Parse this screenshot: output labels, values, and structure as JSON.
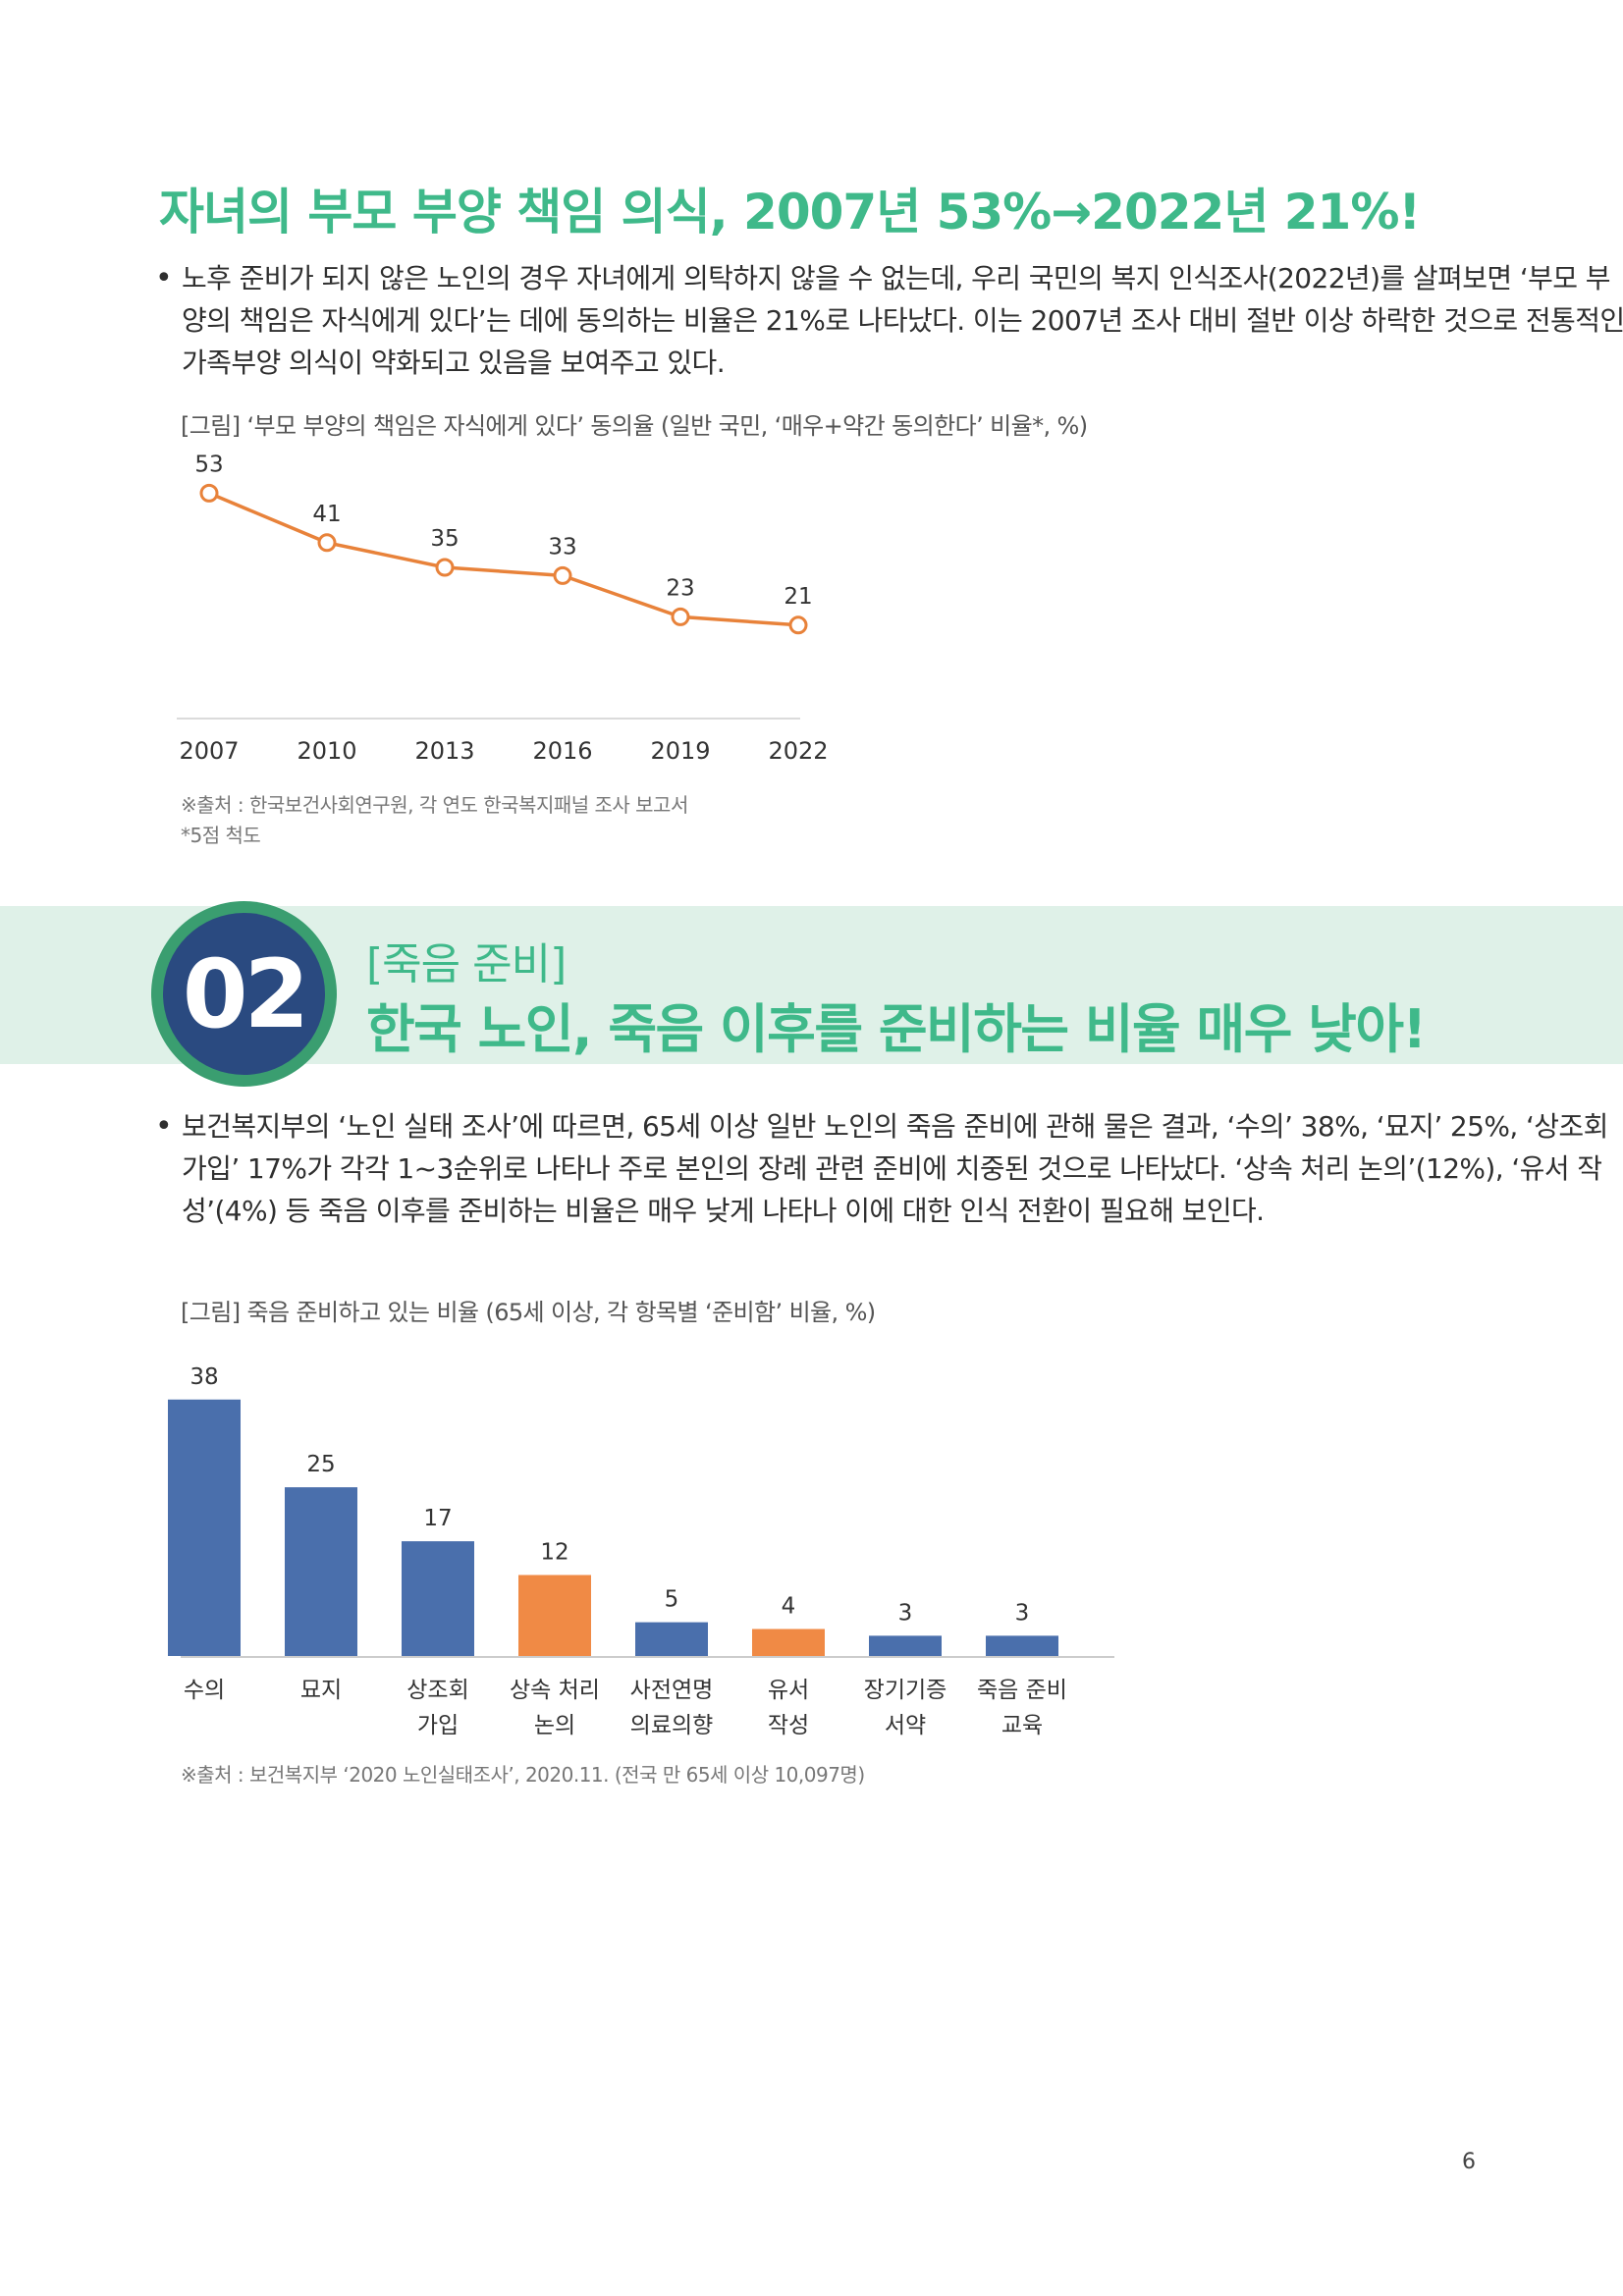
{
  "section1": {
    "title": "자녀의 부모 부양 책임 의식, 2007년 53%→2022년 21%!",
    "bullet": "•",
    "paragraph": "노후 준비가 되지 않은 노인의 경우 자녀에게 의탁하지 않을 수 없는데, 우리 국민의 복지 인식조사(2022년)를 살펴보면 ‘부모 부양의 책임은 자식에게 있다’는 데에 동의하는 비율은 21%로 나타났다. 이는 2007년 조사 대비 절반 이상 하락한 것으로 전통적인 가족부양 의식이 약화되고 있음을 보여주고 있다.",
    "figure_caption": "[그림] ‘부모 부양의 책임은 자식에게 있다’ 동의율 (일반 국민, ‘매우+약간 동의한다’ 비율*, %)",
    "source": "※출처 : 한국보건사회연구원, 각 연도 한국복지패널 조사 보고서",
    "note": "*5점 척도"
  },
  "section2": {
    "number": "02",
    "subtitle": "[죽음 준비]",
    "title": "한국 노인, 죽음 이후를 준비하는 비율 매우 낮아!",
    "bullet": "•",
    "paragraph": "보건복지부의 ‘노인 실태 조사’에 따르면, 65세 이상 일반 노인의 죽음 준비에 관해 물은 결과, ‘수의’ 38%, ‘묘지’ 25%, ‘상조회 가입’ 17%가 각각 1~3순위로 나타나 주로 본인의 장례 관련 준비에 치중된 것으로 나타났다. ‘상속 처리 논의’(12%), ‘유서 작성’(4%) 등 죽음 이후를 준비하는 비율은 매우 낮게 나타나 이에 대한 인식 전환이 필요해 보인다.",
    "figure_caption": "[그림] 죽음 준비하고 있는 비율 (65세 이상, 각 항목별 ‘준비함’ 비율, %)",
    "source": "※출처 : 보건복지부 ‘2020 노인실태조사’, 2020.11. (전국 만 65세 이상 10,097명)"
  },
  "page_number": "6",
  "colors": {
    "accent_green": "#3fb98a",
    "band": "#dff1e8",
    "circle_navy": "#2a4a80",
    "line_orange": "#e8823a",
    "bar_blue": "#4a6fac",
    "bar_orange": "#f08a45"
  },
  "chart_data": [
    {
      "type": "line",
      "x": [
        "2007",
        "2010",
        "2013",
        "2016",
        "2019",
        "2022"
      ],
      "series": [
        {
          "values": [
            53,
            41,
            35,
            33,
            23,
            21
          ]
        }
      ],
      "ylim": [
        0,
        60
      ],
      "grid": false,
      "legend": "none"
    },
    {
      "type": "bar",
      "categories": [
        [
          "수의"
        ],
        [
          "묘지"
        ],
        [
          "상조회",
          "가입"
        ],
        [
          "상속 처리",
          "논의"
        ],
        [
          "사전연명",
          "의료의향"
        ],
        [
          "유서",
          "작성"
        ],
        [
          "장기기증",
          "서약"
        ],
        [
          "죽음 준비",
          "교육"
        ]
      ],
      "values": [
        38,
        25,
        17,
        12,
        5,
        4,
        3,
        3
      ],
      "highlight": [
        false,
        false,
        false,
        true,
        false,
        true,
        false,
        false
      ],
      "ylim": [
        0,
        40
      ],
      "grid": false,
      "legend": "none"
    }
  ]
}
